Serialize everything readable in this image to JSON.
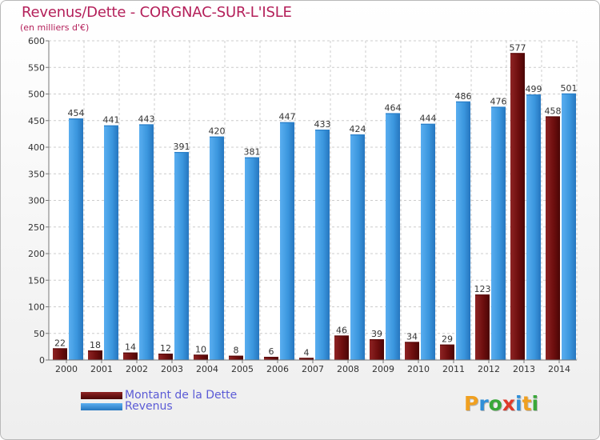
{
  "chart_data": {
    "type": "bar",
    "title": "Revenus/Dette - CORGNAC-SUR-L'ISLE",
    "subtitle": "(en milliers d'€)",
    "xlabel": "",
    "ylabel": "",
    "ylim": [
      0,
      600
    ],
    "yticks": [
      0,
      50,
      100,
      150,
      200,
      250,
      300,
      350,
      400,
      450,
      500,
      550,
      600
    ],
    "grid": true,
    "legend_position": "bottom-left",
    "categories": [
      "2000",
      "2001",
      "2002",
      "2003",
      "2004",
      "2005",
      "2006",
      "2007",
      "2008",
      "2009",
      "2010",
      "2011",
      "2012",
      "2013",
      "2014"
    ],
    "series": [
      {
        "name": "Montant de la Dette",
        "color": "#7a1414",
        "values": [
          22,
          18,
          14,
          12,
          10,
          8,
          6,
          4,
          46,
          39,
          34,
          29,
          123,
          577,
          458
        ]
      },
      {
        "name": "Revenus",
        "color": "#3d9be0",
        "values": [
          454,
          441,
          443,
          391,
          420,
          381,
          447,
          433,
          424,
          464,
          444,
          486,
          476,
          499,
          501
        ]
      }
    ]
  },
  "branding": {
    "logo_text": "Proxiti"
  }
}
